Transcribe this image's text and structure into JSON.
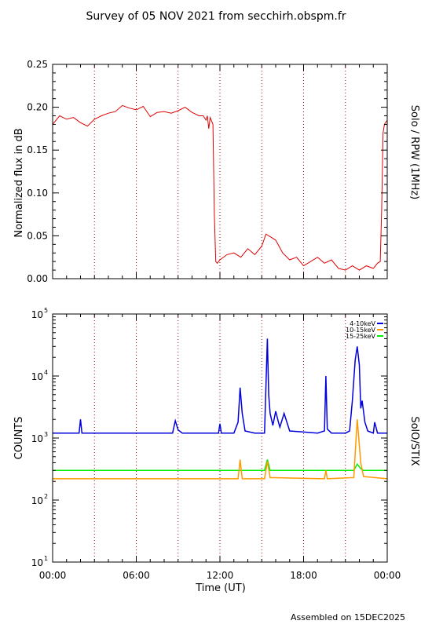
{
  "page": {
    "title": "Survey of 05 NOV 2021 from secchirh.obspm.fr",
    "footer": "Assembled on 15DEC2025"
  },
  "chart_data": [
    {
      "type": "line",
      "ylabel": "Normalized flux in dB",
      "right_label": "Solo / RPW (1MHz)",
      "xlim": [
        0,
        24
      ],
      "ylim": [
        0,
        0.25
      ],
      "yticks": [
        0.0,
        0.05,
        0.1,
        0.15,
        0.2,
        0.25
      ],
      "ytick_labels": [
        "0.00",
        "0.05",
        "0.10",
        "0.15",
        "0.20",
        "0.25"
      ],
      "vlines": [
        3,
        6,
        9,
        12,
        15,
        18,
        21
      ],
      "series": [
        {
          "color": "#e00000",
          "x": [
            0,
            0.5,
            1,
            1.5,
            2,
            2.5,
            3,
            3.5,
            4,
            4.5,
            5,
            5.5,
            6,
            6.5,
            7,
            7.5,
            8,
            8.5,
            9,
            9.5,
            10,
            10.5,
            10.8,
            11,
            11.1,
            11.2,
            11.3,
            11.5,
            11.6,
            11.7,
            11.8,
            12,
            12.5,
            13,
            13.5,
            14,
            14.5,
            15,
            15.3,
            15.7,
            16,
            16.5,
            17,
            17.5,
            18,
            18.5,
            19,
            19.5,
            20,
            20.5,
            21,
            21.5,
            22,
            22.5,
            23,
            23.3,
            23.5,
            23.6,
            23.7,
            23.8,
            24
          ],
          "y": [
            0.18,
            0.19,
            0.186,
            0.188,
            0.182,
            0.178,
            0.186,
            0.19,
            0.193,
            0.195,
            0.202,
            0.199,
            0.197,
            0.201,
            0.189,
            0.194,
            0.195,
            0.193,
            0.196,
            0.2,
            0.194,
            0.19,
            0.19,
            0.185,
            0.19,
            0.175,
            0.188,
            0.18,
            0.075,
            0.02,
            0.018,
            0.022,
            0.028,
            0.03,
            0.025,
            0.035,
            0.028,
            0.038,
            0.052,
            0.048,
            0.045,
            0.03,
            0.022,
            0.025,
            0.015,
            0.02,
            0.025,
            0.018,
            0.022,
            0.012,
            0.01,
            0.015,
            0.01,
            0.015,
            0.012,
            0.018,
            0.02,
            0.08,
            0.17,
            0.18,
            0.185
          ]
        }
      ]
    },
    {
      "type": "line",
      "ylabel": "COUNTS",
      "xlabel": "Time (UT)",
      "right_label": "SolO/STIX",
      "xlim": [
        0,
        24
      ],
      "ylim": [
        10,
        100000
      ],
      "yscale": "log",
      "ytick_mant": [
        "10",
        "10",
        "10",
        "10",
        "10"
      ],
      "ytick_exp": [
        "1",
        "2",
        "3",
        "4",
        "5"
      ],
      "xticks": [
        0,
        6,
        12,
        18,
        24
      ],
      "xtick_labels": [
        "00:00",
        "06:00",
        "12:00",
        "18:00",
        "00:00"
      ],
      "vlines": [
        3,
        6,
        9,
        12,
        15,
        18,
        21
      ],
      "legend_position": "top-right",
      "series": [
        {
          "name": "4-10keV",
          "color": "#0000dd",
          "x": [
            0,
            1.9,
            2.0,
            2.1,
            3,
            6,
            8.6,
            8.8,
            9.0,
            9.3,
            10,
            11.5,
            11.9,
            12.0,
            12.1,
            13,
            13.3,
            13.45,
            13.6,
            13.8,
            14.5,
            15.2,
            15.4,
            15.5,
            15.6,
            15.8,
            16.0,
            16.2,
            16.3,
            16.6,
            17,
            19,
            19.5,
            19.6,
            19.7,
            20,
            21,
            21.3,
            21.5,
            21.7,
            21.85,
            22.0,
            22.1,
            22.2,
            22.4,
            22.6,
            23.0,
            23.1,
            23.3,
            24
          ],
          "y": [
            1200,
            1200,
            2000,
            1200,
            1200,
            1200,
            1200,
            1900,
            1350,
            1200,
            1200,
            1200,
            1200,
            1700,
            1200,
            1200,
            1800,
            6500,
            2500,
            1300,
            1200,
            1200,
            40000,
            5000,
            2500,
            1600,
            2700,
            1800,
            1500,
            2500,
            1300,
            1200,
            1300,
            10000,
            1400,
            1200,
            1200,
            1300,
            4000,
            18000,
            30000,
            15000,
            3000,
            4000,
            1800,
            1300,
            1200,
            1800,
            1200,
            1200
          ]
        },
        {
          "name": "10-15keV",
          "color": "#ff9900",
          "x": [
            0,
            5,
            10,
            13.3,
            13.45,
            13.6,
            15.2,
            15.4,
            15.6,
            19.5,
            19.6,
            19.7,
            21.6,
            21.85,
            22.1,
            22.3,
            24
          ],
          "y": [
            220,
            220,
            220,
            220,
            450,
            220,
            220,
            420,
            230,
            220,
            300,
            220,
            230,
            2000,
            400,
            240,
            220
          ]
        },
        {
          "name": "15-25keV",
          "color": "#00ee00",
          "x": [
            0,
            5,
            10,
            15.2,
            15.4,
            15.6,
            21.6,
            21.85,
            22.1,
            22.3,
            24
          ],
          "y": [
            300,
            300,
            300,
            300,
            450,
            300,
            300,
            380,
            320,
            300,
            300
          ]
        }
      ]
    }
  ]
}
